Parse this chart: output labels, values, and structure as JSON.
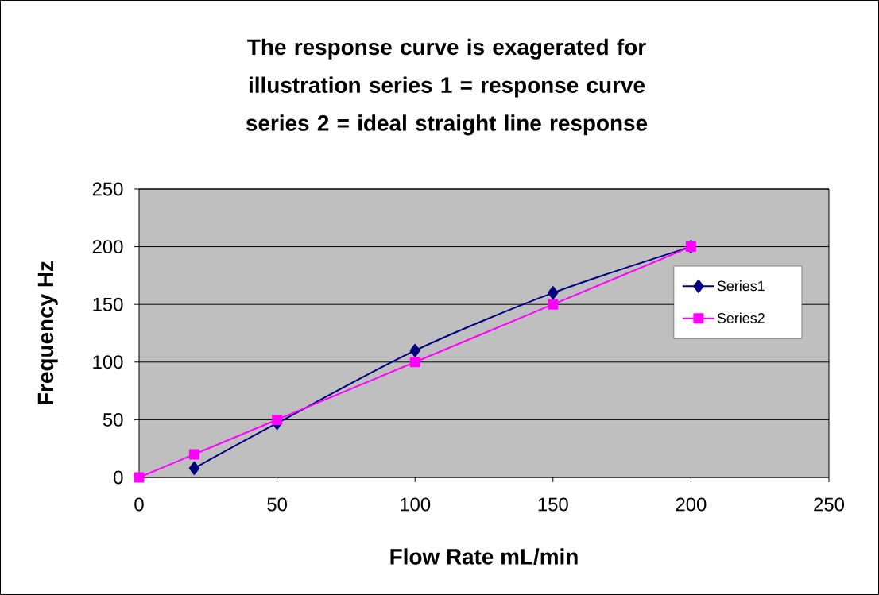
{
  "chart_data": {
    "type": "line",
    "title": "The response curve is exagerated for illustration        series 1 = response curve series 2 = ideal straight line response",
    "xlabel": "Flow Rate mL/min",
    "ylabel": "Frequency Hz",
    "series": [
      {
        "name": "Series1",
        "color": "#000080",
        "marker": "diamond",
        "x": [
          20,
          50,
          100,
          150,
          200
        ],
        "values": [
          8,
          47,
          110,
          160,
          200
        ]
      },
      {
        "name": "Series2",
        "color": "#ff00ff",
        "marker": "square",
        "x": [
          0,
          20,
          50,
          100,
          150,
          200
        ],
        "values": [
          0,
          20,
          50,
          100,
          150,
          200
        ]
      }
    ],
    "xlim": [
      0,
      250
    ],
    "ylim": [
      0,
      250
    ],
    "xticks": [
      0,
      50,
      100,
      150,
      200,
      250
    ],
    "yticks": [
      0,
      50,
      100,
      150,
      200,
      250
    ],
    "grid": "y",
    "legend": "right",
    "line_style": "solid"
  }
}
